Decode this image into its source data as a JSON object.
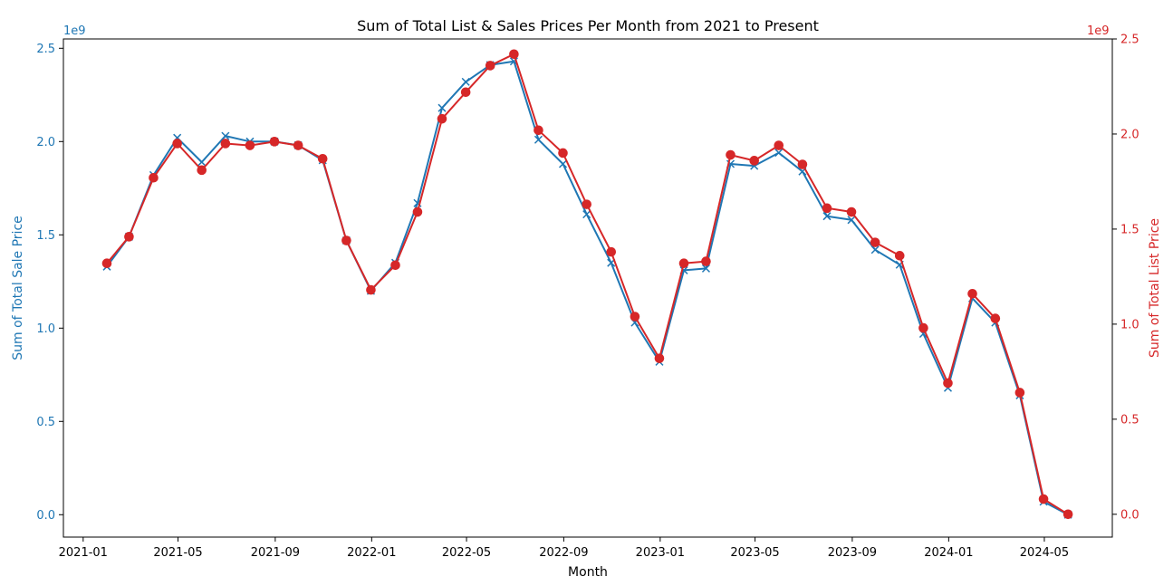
{
  "chart_data": {
    "type": "line",
    "title": "Sum of Total List & Sales Prices Per Month from 2021 to Present",
    "xlabel": "Month",
    "ylabel_left": "Sum of Total Sale Price",
    "ylabel_right": "Sum of Total List Price",
    "y_multiplier_left": "1e9",
    "y_multiplier_right": "1e9",
    "ylim_left": [
      -0.12,
      2.55
    ],
    "ylim_right": [
      -0.12,
      2.5
    ],
    "yticks_left": [
      "0.0",
      "0.5",
      "1.0",
      "1.5",
      "2.0",
      "2.5"
    ],
    "yticks_right": [
      "0.0",
      "0.5",
      "1.0",
      "1.5",
      "2.0",
      "2.5"
    ],
    "x_tick_labels": [
      "2021-01",
      "2021-05",
      "2021-09",
      "2022-01",
      "2022-05",
      "2022-09",
      "2023-01",
      "2023-05",
      "2023-09",
      "2024-01",
      "2024-05"
    ],
    "x_tick_dates": [
      "2021-01-01",
      "2021-05-01",
      "2021-09-01",
      "2022-01-01",
      "2022-05-01",
      "2022-09-01",
      "2023-01-01",
      "2023-05-01",
      "2023-09-01",
      "2024-01-01",
      "2024-05-01"
    ],
    "xlim": [
      "2020-12-07",
      "2024-07-26"
    ],
    "x": [
      "2021-01-31",
      "2021-02-28",
      "2021-03-31",
      "2021-04-30",
      "2021-05-31",
      "2021-06-30",
      "2021-07-31",
      "2021-08-31",
      "2021-09-30",
      "2021-10-31",
      "2021-11-30",
      "2021-12-31",
      "2022-01-31",
      "2022-02-28",
      "2022-03-31",
      "2022-04-30",
      "2022-05-31",
      "2022-06-30",
      "2022-07-31",
      "2022-08-31",
      "2022-09-30",
      "2022-10-31",
      "2022-11-30",
      "2022-12-31",
      "2023-01-31",
      "2023-02-28",
      "2023-03-31",
      "2023-04-30",
      "2023-05-31",
      "2023-06-30",
      "2023-07-31",
      "2023-08-31",
      "2023-09-30",
      "2023-10-31",
      "2023-11-30",
      "2023-12-31",
      "2024-01-31",
      "2024-02-29",
      "2024-03-31",
      "2024-04-30",
      "2024-05-31"
    ],
    "series": [
      {
        "axis": "left",
        "color": "#1f77b4",
        "marker": "x",
        "values": [
          1.33,
          1.49,
          1.82,
          2.02,
          1.89,
          2.03,
          2.0,
          2.0,
          1.98,
          1.9,
          1.47,
          1.2,
          1.35,
          1.67,
          2.18,
          2.32,
          2.41,
          2.43,
          2.01,
          1.88,
          1.61,
          1.35,
          1.03,
          0.82,
          1.31,
          1.32,
          1.88,
          1.87,
          1.94,
          1.84,
          1.6,
          1.58,
          1.42,
          1.34,
          0.97,
          0.68,
          1.16,
          1.03,
          0.64,
          0.07,
          0.0
        ]
      },
      {
        "axis": "right",
        "color": "#d62728",
        "marker": "o",
        "values": [
          1.32,
          1.46,
          1.77,
          1.95,
          1.81,
          1.95,
          1.94,
          1.96,
          1.94,
          1.87,
          1.44,
          1.18,
          1.31,
          1.59,
          2.08,
          2.22,
          2.36,
          2.42,
          2.02,
          1.9,
          1.63,
          1.38,
          1.04,
          0.82,
          1.32,
          1.33,
          1.89,
          1.86,
          1.94,
          1.84,
          1.61,
          1.59,
          1.43,
          1.36,
          0.98,
          0.69,
          1.16,
          1.03,
          0.64,
          0.08,
          0.0
        ]
      }
    ],
    "grid": false
  }
}
